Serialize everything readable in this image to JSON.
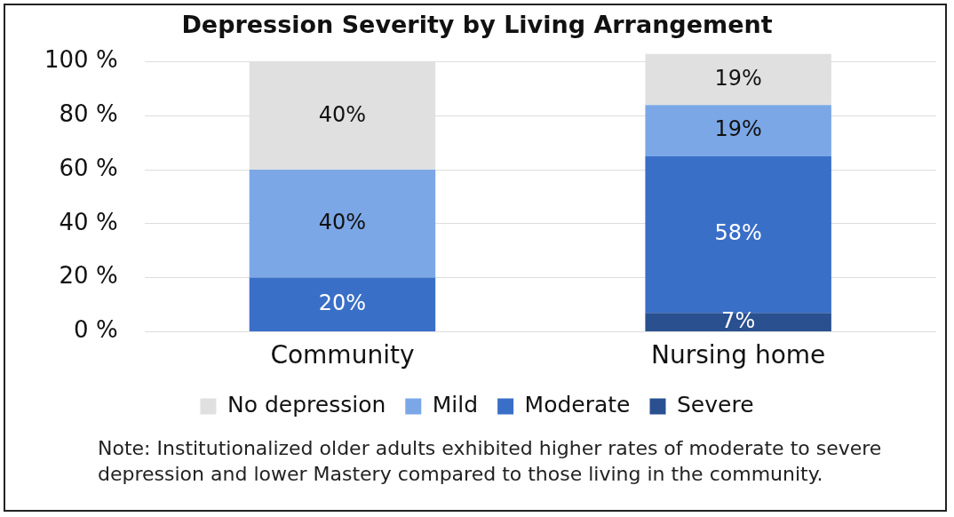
{
  "chart_data": {
    "type": "bar",
    "title": "Depression Severity by Living Arrangement",
    "categories": [
      "Community",
      "Nursing home"
    ],
    "stacked": true,
    "series": [
      {
        "name": "Severe",
        "color": "#2a5090",
        "values": [
          0,
          7
        ],
        "value_labels": [
          null,
          "7%"
        ]
      },
      {
        "name": "Moderate",
        "color": "#3a6fc8",
        "values": [
          20,
          58
        ],
        "value_labels": [
          "20%",
          "58%"
        ]
      },
      {
        "name": "Mild",
        "color": "#7ba7e6",
        "values": [
          40,
          19
        ],
        "value_labels": [
          "40%",
          "19%"
        ]
      },
      {
        "name": "No depression",
        "color": "#e0e0e0",
        "values": [
          40,
          19
        ],
        "value_labels": [
          "40%",
          "19%"
        ]
      }
    ],
    "ylim": [
      0,
      103
    ],
    "yticks": [
      {
        "value": 0,
        "label": "0 %"
      },
      {
        "value": 20,
        "label": "20 %"
      },
      {
        "value": 40,
        "label": "40 %"
      },
      {
        "value": 60,
        "label": "60 %"
      },
      {
        "value": 80,
        "label": "80 %"
      },
      {
        "value": 100,
        "label": "100 %"
      }
    ],
    "grid": "y",
    "legend": "bottom",
    "annotations": [
      "Note: Institutionalized older adults exhibited higher rates of moderate to severe depression and lower Mastery compared to those living in the community."
    ]
  }
}
